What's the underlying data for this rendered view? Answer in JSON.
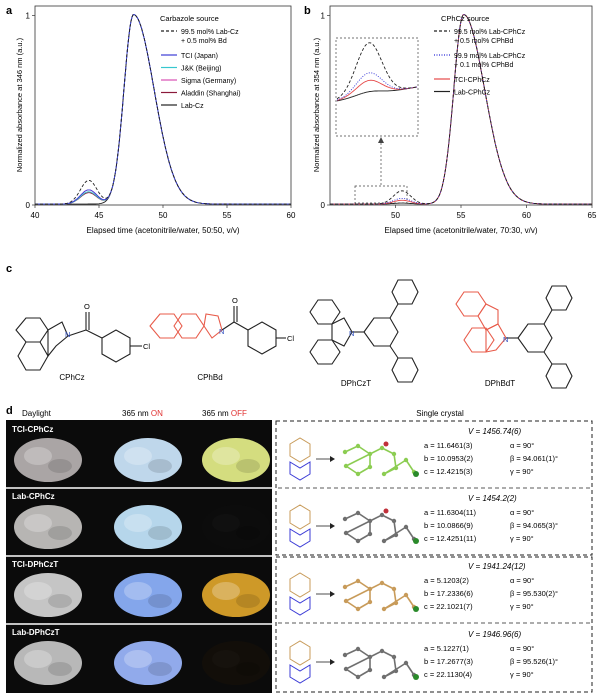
{
  "panels": {
    "a": "a",
    "b": "b",
    "c": "c",
    "d": "d"
  },
  "chart_data": [
    {
      "type": "line",
      "panel": "a",
      "xlabel": "Elapsed time (acetonitrile/water, 50:50, v/v)",
      "ylabel": "Normalized absorbance at 346 nm (a.u.)",
      "xlim": [
        40,
        60
      ],
      "ylim": [
        0,
        1.05
      ],
      "xticks": [
        40,
        45,
        50,
        55,
        60
      ],
      "yticks": [
        0,
        1
      ],
      "legend_title": "Carbazole source",
      "legend_position": "top-right",
      "grid": false,
      "series": [
        {
          "name": "99.5 mol% Lab-Cz\n+ 0.5 mol% Bd",
          "style": "dashed",
          "color": "#222222",
          "peak2": 0.125
        },
        {
          "name": "TCI (Japan)",
          "style": "solid",
          "color": "#3b3bd6",
          "peak2": 0.075
        },
        {
          "name": "J&K (Beijing)",
          "style": "solid",
          "color": "#37c7cf",
          "peak2": 0.065
        },
        {
          "name": "Sigma (Germany)",
          "style": "solid",
          "color": "#d94fb4",
          "peak2": 0.075
        },
        {
          "name": "Aladdin (Shanghai)",
          "style": "solid",
          "color": "#8b1a3a",
          "peak2": 0.06
        },
        {
          "name": "Lab-Cz",
          "style": "solid",
          "color": "#222222",
          "peak2": 0.0
        }
      ],
      "peaks": {
        "main_x": 47.7,
        "minor_x": 44.2
      }
    },
    {
      "type": "line",
      "panel": "b",
      "xlabel": "Elapsed time (acetonitrile/water, 70:30, v/v)",
      "ylabel": "Normalized absorbance at 354 nm (a.u.)",
      "xlim": [
        45,
        65
      ],
      "ylim": [
        0,
        1.05
      ],
      "xticks": [
        50,
        55,
        60,
        65
      ],
      "yticks": [
        0,
        1
      ],
      "legend_title": "CPhCz source",
      "legend_position": "top-right",
      "grid": false,
      "series": [
        {
          "name": "99.5 mol% Lab-CPhCz\n+ 0.5 mol% CPhBd",
          "style": "dashed",
          "color": "#222222",
          "peak2": 0.07
        },
        {
          "name": "99.9 mol% Lab-CPhCz\n+ 0.1 mol% CPhBd",
          "style": "dotted",
          "color": "#2b2bd6",
          "peak2": 0.03
        },
        {
          "name": "TCI-CPhCz",
          "style": "solid",
          "color": "#e64a4a",
          "peak2": 0.02
        },
        {
          "name": "Lab-CPhCz",
          "style": "solid",
          "color": "#222222",
          "peak2": 0.005
        }
      ],
      "peaks": {
        "main_x": 55.2,
        "minor_x": 50.5
      }
    }
  ],
  "molecules": [
    {
      "name": "CPhCz",
      "highlight": false
    },
    {
      "name": "CPhBd",
      "highlight": true
    },
    {
      "name": "DPhCzT",
      "highlight": false
    },
    {
      "name": "DPhBdT",
      "highlight": true
    }
  ],
  "mol_atoms": {
    "O": "O",
    "Cl": "Cl",
    "N": "N"
  },
  "highlight_color": "#e85b4a",
  "panel_d": {
    "col_headers": {
      "daylight": "Daylight",
      "on_prefix": "365 nm ",
      "on": "ON",
      "off_prefix": "365 nm ",
      "off": "OFF",
      "crystal": "Single crystal"
    },
    "on_color": "#e03030",
    "rows": [
      {
        "label": "TCI-CPhCz",
        "colors": {
          "daylight": "#b9b3b3",
          "on": "#cfe9ff",
          "off": "#e6f08a"
        },
        "V": "V = 1456.74(6)",
        "params": [
          "a = 11.6461(3)",
          "b = 10.0953(2)",
          "c = 12.4215(3)"
        ],
        "angles": [
          "α = 90°",
          "β = 94.061(1)°",
          "γ = 90°"
        ],
        "mol_color": "#8ccd52"
      },
      {
        "label": "Lab-CPhCz",
        "colors": {
          "daylight": "#c7c4c2",
          "on": "#c5e8ff",
          "off": "#0d0d0d"
        },
        "V": "V = 1454.2(2)",
        "params": [
          "a = 11.6304(11)",
          "b = 10.0866(9)",
          "c = 12.4251(11)"
        ],
        "angles": [
          "α = 90°",
          "β = 94.065(3)°",
          "γ = 90°"
        ],
        "mol_color": "#6f6f6f"
      },
      {
        "label": "TCI-DPhCzT",
        "colors": {
          "daylight": "#d6d6d6",
          "on": "#8fb4ff",
          "off": "#e0a62b"
        },
        "V": "V = 1941.24(12)",
        "params": [
          "a = 5.1203(2)",
          "b = 17.2336(6)",
          "c = 22.1021(7)"
        ],
        "angles": [
          "α = 90°",
          "β = 95.530(2)°",
          "γ = 90°"
        ],
        "mol_color": "#c89b5a"
      },
      {
        "label": "Lab-DPhCzT",
        "colors": {
          "daylight": "#c8c8c8",
          "on": "#9db8ff",
          "off": "#140f0a"
        },
        "V": "V = 1946.96(6)",
        "params": [
          "a = 5.1227(1)",
          "b = 17.2677(3)",
          "c = 22.1130(4)"
        ],
        "angles": [
          "α = 90°",
          "β = 95.526(1)°",
          "γ = 90°"
        ],
        "mol_color": "#6f6f6f"
      }
    ]
  }
}
